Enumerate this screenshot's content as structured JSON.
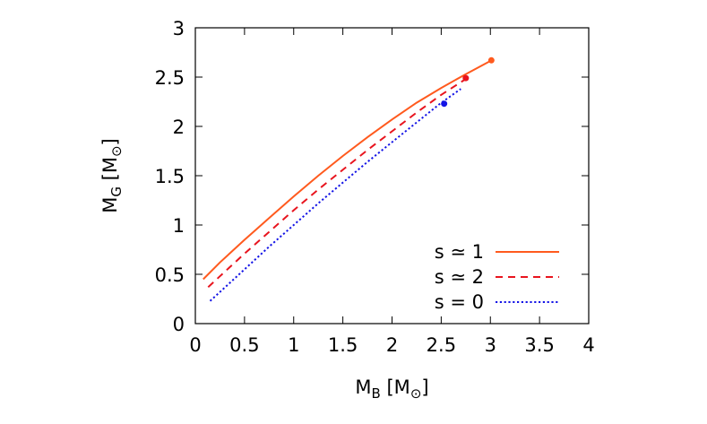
{
  "chart_data": {
    "type": "line",
    "title": "",
    "xlabel": {
      "main": "M",
      "sub": "B",
      "unit_open": " [M",
      "unit_sub": "⊙",
      "unit_close": "]"
    },
    "ylabel": {
      "main": "M",
      "sub": "G",
      "unit_open": " [M",
      "unit_sub": "⊙",
      "unit_close": "]"
    },
    "xlim": [
      0,
      4
    ],
    "ylim": [
      0,
      3
    ],
    "xticks": [
      0,
      0.5,
      1,
      1.5,
      2,
      2.5,
      3,
      3.5,
      4
    ],
    "xtick_labels": [
      "0",
      "0.5",
      "1",
      "1.5",
      "2",
      "2.5",
      "3",
      "3.5",
      "4"
    ],
    "yticks": [
      0,
      0.5,
      1,
      1.5,
      2,
      2.5,
      3
    ],
    "ytick_labels": [
      "0",
      "0.5",
      "1",
      "1.5",
      "2",
      "2.5",
      "3"
    ],
    "grid": false,
    "legend_position": "bottom-right",
    "series": [
      {
        "name": "s ≃ 1",
        "color": "#ff5a1e",
        "dash": "solid",
        "x": [
          0.08,
          0.25,
          0.5,
          0.75,
          1.0,
          1.25,
          1.5,
          1.75,
          2.0,
          2.25,
          2.5,
          2.75,
          3.03
        ],
        "y": [
          0.45,
          0.62,
          0.85,
          1.07,
          1.29,
          1.5,
          1.7,
          1.89,
          2.07,
          2.24,
          2.39,
          2.53,
          2.68
        ],
        "endpoint": [
          3.01,
          2.67
        ]
      },
      {
        "name": "s ≃ 2",
        "color": "#e8141e",
        "dash": "dashed",
        "x": [
          0.13,
          0.25,
          0.5,
          0.75,
          1.0,
          1.25,
          1.5,
          1.75,
          2.0,
          2.25,
          2.5,
          2.78
        ],
        "y": [
          0.37,
          0.48,
          0.71,
          0.93,
          1.15,
          1.36,
          1.56,
          1.76,
          1.95,
          2.14,
          2.32,
          2.5
        ],
        "endpoint": [
          2.75,
          2.49
        ]
      },
      {
        "name": "s = 0",
        "color": "#1414e6",
        "dash": "dotted",
        "x": [
          0.15,
          0.25,
          0.5,
          0.75,
          1.0,
          1.25,
          1.5,
          1.75,
          2.0,
          2.25,
          2.5,
          2.7
        ],
        "y": [
          0.23,
          0.32,
          0.55,
          0.78,
          1.0,
          1.22,
          1.43,
          1.64,
          1.84,
          2.04,
          2.24,
          2.38
        ],
        "endpoint": [
          2.53,
          2.23
        ]
      }
    ]
  }
}
